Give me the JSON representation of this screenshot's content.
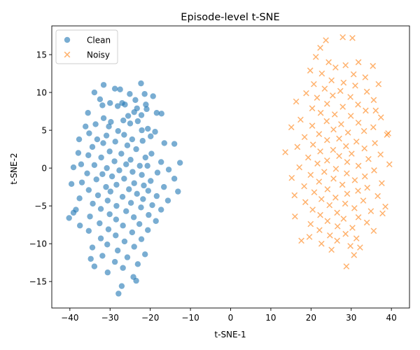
{
  "chart_data": {
    "type": "scatter",
    "title": "Episode-level t-SNE",
    "xlabel": "t-SNE-1",
    "ylabel": "t-SNE-2",
    "xlim": [
      -44.5,
      44.5
    ],
    "ylim": [
      -18.5,
      18.8
    ],
    "xticks": [
      -40,
      -30,
      -20,
      -10,
      0,
      10,
      20,
      30,
      40
    ],
    "yticks": [
      -15,
      -10,
      -5,
      0,
      5,
      10,
      15
    ],
    "grid": false,
    "legend_position": "top-left",
    "series": [
      {
        "name": "Clean",
        "marker": "circle",
        "color": "#1f77b4",
        "alpha": 0.6,
        "points": [
          [
            -31.6,
            11.0
          ],
          [
            -22.3,
            11.2
          ],
          [
            -28.8,
            10.5
          ],
          [
            -27.5,
            10.4
          ],
          [
            -33.9,
            10.0
          ],
          [
            -25.1,
            9.8
          ],
          [
            -21.4,
            9.8
          ],
          [
            -19.3,
            9.5
          ],
          [
            -32.5,
            9.1
          ],
          [
            -23.7,
            9.0
          ],
          [
            -30.0,
            8.6
          ],
          [
            -27.0,
            8.6
          ],
          [
            -26.3,
            8.4
          ],
          [
            -21.1,
            8.4
          ],
          [
            -31.9,
            8.3
          ],
          [
            -28.1,
            8.2
          ],
          [
            -23.3,
            7.9
          ],
          [
            -20.9,
            7.8
          ],
          [
            -24.0,
            7.4
          ],
          [
            -18.4,
            7.3
          ],
          [
            -35.5,
            7.3
          ],
          [
            -17.2,
            7.2
          ],
          [
            -22.2,
            7.0
          ],
          [
            -25.5,
            6.9
          ],
          [
            -31.6,
            6.6
          ],
          [
            -26.7,
            6.3
          ],
          [
            -23.1,
            6.2
          ],
          [
            -29.8,
            6.1
          ],
          [
            -25.0,
            5.9
          ],
          [
            -33.6,
            5.8
          ],
          [
            -30.3,
            5.5
          ],
          [
            -36.1,
            5.5
          ],
          [
            -20.6,
            5.2
          ],
          [
            -22.1,
            5.0
          ],
          [
            -28.0,
            4.9
          ],
          [
            -18.8,
            4.8
          ],
          [
            -35.2,
            4.6
          ],
          [
            -26.5,
            4.4
          ],
          [
            -30.9,
            4.3
          ],
          [
            -19.9,
            4.2
          ],
          [
            -24.5,
            3.8
          ],
          [
            -33.2,
            3.8
          ],
          [
            -21.9,
            3.6
          ],
          [
            -28.7,
            3.5
          ],
          [
            -37.7,
            3.8
          ],
          [
            -16.5,
            3.3
          ],
          [
            -31.7,
            3.3
          ],
          [
            -25.7,
            3.0
          ],
          [
            -14.0,
            3.2
          ],
          [
            -34.4,
            2.8
          ],
          [
            -23.5,
            2.5
          ],
          [
            -30.1,
            2.2
          ],
          [
            -37.9,
            2.0
          ],
          [
            -27.2,
            1.9
          ],
          [
            -19.7,
            1.9
          ],
          [
            -35.4,
            1.7
          ],
          [
            -32.2,
            1.4
          ],
          [
            -21.2,
            1.4
          ],
          [
            -24.9,
            1.1
          ],
          [
            -28.9,
            0.9
          ],
          [
            -17.3,
            0.8
          ],
          [
            -37.2,
            0.5
          ],
          [
            -33.9,
            0.4
          ],
          [
            -26.0,
            0.5
          ],
          [
            -20.7,
            0.3
          ],
          [
            -22.6,
            0.3
          ],
          [
            -12.6,
            0.7
          ],
          [
            -39.1,
            0.1
          ],
          [
            -30.8,
            0.0
          ],
          [
            -15.4,
            -0.2
          ],
          [
            -27.7,
            -0.3
          ],
          [
            -24.4,
            -0.5
          ],
          [
            -35.7,
            -0.7
          ],
          [
            -18.2,
            -0.6
          ],
          [
            -31.9,
            -0.8
          ],
          [
            -22.1,
            -0.9
          ],
          [
            -29.5,
            -1.1
          ],
          [
            -14.0,
            -1.4
          ],
          [
            -26.5,
            -1.4
          ],
          [
            -33.4,
            -1.5
          ],
          [
            -19.9,
            -1.7
          ],
          [
            -37.0,
            -1.9
          ],
          [
            -24.0,
            -2.0
          ],
          [
            -39.6,
            -2.1
          ],
          [
            -28.4,
            -2.2
          ],
          [
            -21.6,
            -2.3
          ],
          [
            -31.0,
            -2.5
          ],
          [
            -16.6,
            -2.5
          ],
          [
            -25.3,
            -2.8
          ],
          [
            -35.3,
            -2.9
          ],
          [
            -20.5,
            -3.0
          ],
          [
            -29.9,
            -3.1
          ],
          [
            -13.1,
            -3.1
          ],
          [
            -23.3,
            -3.4
          ],
          [
            -33.0,
            -3.6
          ],
          [
            -18.4,
            -3.7
          ],
          [
            -26.9,
            -3.8
          ],
          [
            -37.6,
            -4.0
          ],
          [
            -21.8,
            -4.1
          ],
          [
            -30.6,
            -4.3
          ],
          [
            -15.6,
            -4.3
          ],
          [
            -24.8,
            -4.6
          ],
          [
            -34.3,
            -4.7
          ],
          [
            -19.5,
            -4.9
          ],
          [
            -28.4,
            -5.0
          ],
          [
            -38.5,
            -5.5
          ],
          [
            -22.3,
            -5.2
          ],
          [
            -32.3,
            -5.4
          ],
          [
            -17.3,
            -5.5
          ],
          [
            -26.0,
            -5.7
          ],
          [
            -39.1,
            -5.9
          ],
          [
            -30.1,
            -6.1
          ],
          [
            -20.4,
            -6.2
          ],
          [
            -35.0,
            -6.4
          ],
          [
            -24.1,
            -6.5
          ],
          [
            -40.2,
            -6.6
          ],
          [
            -28.5,
            -6.8
          ],
          [
            -18.6,
            -7.0
          ],
          [
            -32.6,
            -7.3
          ],
          [
            -22.7,
            -7.4
          ],
          [
            -37.5,
            -7.6
          ],
          [
            -26.8,
            -7.6
          ],
          [
            -30.4,
            -8.1
          ],
          [
            -20.6,
            -8.2
          ],
          [
            -35.3,
            -8.3
          ],
          [
            -24.5,
            -8.5
          ],
          [
            -28.6,
            -8.9
          ],
          [
            -32.3,
            -9.3
          ],
          [
            -22.2,
            -9.4
          ],
          [
            -26.4,
            -9.7
          ],
          [
            -30.7,
            -10.1
          ],
          [
            -24.0,
            -10.4
          ],
          [
            -34.4,
            -10.5
          ],
          [
            -28.1,
            -10.9
          ],
          [
            -21.3,
            -11.4
          ],
          [
            -31.9,
            -11.6
          ],
          [
            -25.7,
            -11.8
          ],
          [
            -34.8,
            -12.0
          ],
          [
            -28.8,
            -12.4
          ],
          [
            -23.1,
            -12.7
          ],
          [
            -26.8,
            -13.2
          ],
          [
            -30.6,
            -13.8
          ],
          [
            -24.2,
            -14.4
          ],
          [
            -27.1,
            -15.6
          ],
          [
            -23.5,
            -14.9
          ],
          [
            -27.9,
            -16.6
          ],
          [
            -33.9,
            -13.0
          ]
        ]
      },
      {
        "name": "Noisy",
        "marker": "x",
        "color": "#ff7f0e",
        "alpha": 0.6,
        "points": [
          [
            23.7,
            16.9
          ],
          [
            27.9,
            17.3
          ],
          [
            30.3,
            17.2
          ],
          [
            22.3,
            15.9
          ],
          [
            21.2,
            14.7
          ],
          [
            31.8,
            14.0
          ],
          [
            24.4,
            14.0
          ],
          [
            28.6,
            13.6
          ],
          [
            35.4,
            13.5
          ],
          [
            26.1,
            13.3
          ],
          [
            19.8,
            12.9
          ],
          [
            22.7,
            12.5
          ],
          [
            30.6,
            12.4
          ],
          [
            33.5,
            12.0
          ],
          [
            25.1,
            11.6
          ],
          [
            28.1,
            11.3
          ],
          [
            20.7,
            11.1
          ],
          [
            36.8,
            11.1
          ],
          [
            31.0,
            10.9
          ],
          [
            23.4,
            10.5
          ],
          [
            27.3,
            10.2
          ],
          [
            33.9,
            10.1
          ],
          [
            18.8,
            9.9
          ],
          [
            25.4,
            9.6
          ],
          [
            29.8,
            9.4
          ],
          [
            21.5,
            9.3
          ],
          [
            35.6,
            9.0
          ],
          [
            16.3,
            8.8
          ],
          [
            24.0,
            8.5
          ],
          [
            31.7,
            8.4
          ],
          [
            27.9,
            8.1
          ],
          [
            20.3,
            7.9
          ],
          [
            33.6,
            7.6
          ],
          [
            22.4,
            7.3
          ],
          [
            25.9,
            7.1
          ],
          [
            29.9,
            6.9
          ],
          [
            37.4,
            6.7
          ],
          [
            17.4,
            6.4
          ],
          [
            23.9,
            6.2
          ],
          [
            31.8,
            6.0
          ],
          [
            27.5,
            5.8
          ],
          [
            20.3,
            5.6
          ],
          [
            35.5,
            5.4
          ],
          [
            15.1,
            5.4
          ],
          [
            25.6,
            5.1
          ],
          [
            33.2,
            4.9
          ],
          [
            29.2,
            4.7
          ],
          [
            22.0,
            4.5
          ],
          [
            38.9,
            4.4
          ],
          [
            18.4,
            4.1
          ],
          [
            27.0,
            3.9
          ],
          [
            24.0,
            3.7
          ],
          [
            31.3,
            3.5
          ],
          [
            35.9,
            3.3
          ],
          [
            20.5,
            3.1
          ],
          [
            28.7,
            2.9
          ],
          [
            16.6,
            2.8
          ],
          [
            33.3,
            2.6
          ],
          [
            25.5,
            2.4
          ],
          [
            22.3,
            2.2
          ],
          [
            13.6,
            2.1
          ],
          [
            30.1,
            1.9
          ],
          [
            37.3,
            1.8
          ],
          [
            27.0,
            1.6
          ],
          [
            19.3,
            1.4
          ],
          [
            34.3,
            1.2
          ],
          [
            24.0,
            1.0
          ],
          [
            29.0,
            0.8
          ],
          [
            21.6,
            0.6
          ],
          [
            39.5,
            0.5
          ],
          [
            31.8,
            0.3
          ],
          [
            17.1,
            0.1
          ],
          [
            26.2,
            -0.1
          ],
          [
            35.7,
            -0.3
          ],
          [
            23.3,
            -0.5
          ],
          [
            28.9,
            -0.7
          ],
          [
            19.9,
            -0.9
          ],
          [
            33.4,
            -1.1
          ],
          [
            15.2,
            -1.3
          ],
          [
            25.6,
            -1.4
          ],
          [
            30.9,
            -1.6
          ],
          [
            22.0,
            -1.8
          ],
          [
            37.6,
            -2.0
          ],
          [
            27.8,
            -2.2
          ],
          [
            18.3,
            -2.4
          ],
          [
            34.0,
            -2.6
          ],
          [
            24.1,
            -2.8
          ],
          [
            31.7,
            -3.0
          ],
          [
            20.8,
            -3.2
          ],
          [
            29.0,
            -3.4
          ],
          [
            15.9,
            -3.6
          ],
          [
            36.6,
            -3.7
          ],
          [
            26.1,
            -3.9
          ],
          [
            22.6,
            -4.1
          ],
          [
            33.0,
            -4.3
          ],
          [
            18.6,
            -4.5
          ],
          [
            28.5,
            -4.7
          ],
          [
            24.6,
            -4.9
          ],
          [
            38.5,
            -5.1
          ],
          [
            30.8,
            -5.3
          ],
          [
            20.4,
            -5.5
          ],
          [
            34.9,
            -5.7
          ],
          [
            26.5,
            -5.9
          ],
          [
            22.3,
            -6.2
          ],
          [
            16.0,
            -6.4
          ],
          [
            31.8,
            -6.5
          ],
          [
            28.1,
            -6.7
          ],
          [
            24.1,
            -7.0
          ],
          [
            33.9,
            -7.2
          ],
          [
            19.9,
            -7.4
          ],
          [
            26.6,
            -7.7
          ],
          [
            30.3,
            -7.9
          ],
          [
            22.1,
            -8.2
          ],
          [
            35.6,
            -8.3
          ],
          [
            28.6,
            -8.7
          ],
          [
            24.7,
            -8.9
          ],
          [
            19.6,
            -9.1
          ],
          [
            31.3,
            -9.3
          ],
          [
            26.5,
            -9.6
          ],
          [
            22.6,
            -10.0
          ],
          [
            29.8,
            -10.3
          ],
          [
            32.2,
            -10.5
          ],
          [
            25.1,
            -10.8
          ],
          [
            30.7,
            -11.5
          ],
          [
            28.8,
            -13.0
          ],
          [
            37.8,
            -6.0
          ],
          [
            17.6,
            -9.6
          ],
          [
            39.2,
            4.6
          ],
          [
            36.1,
            7.6
          ]
        ]
      }
    ]
  }
}
